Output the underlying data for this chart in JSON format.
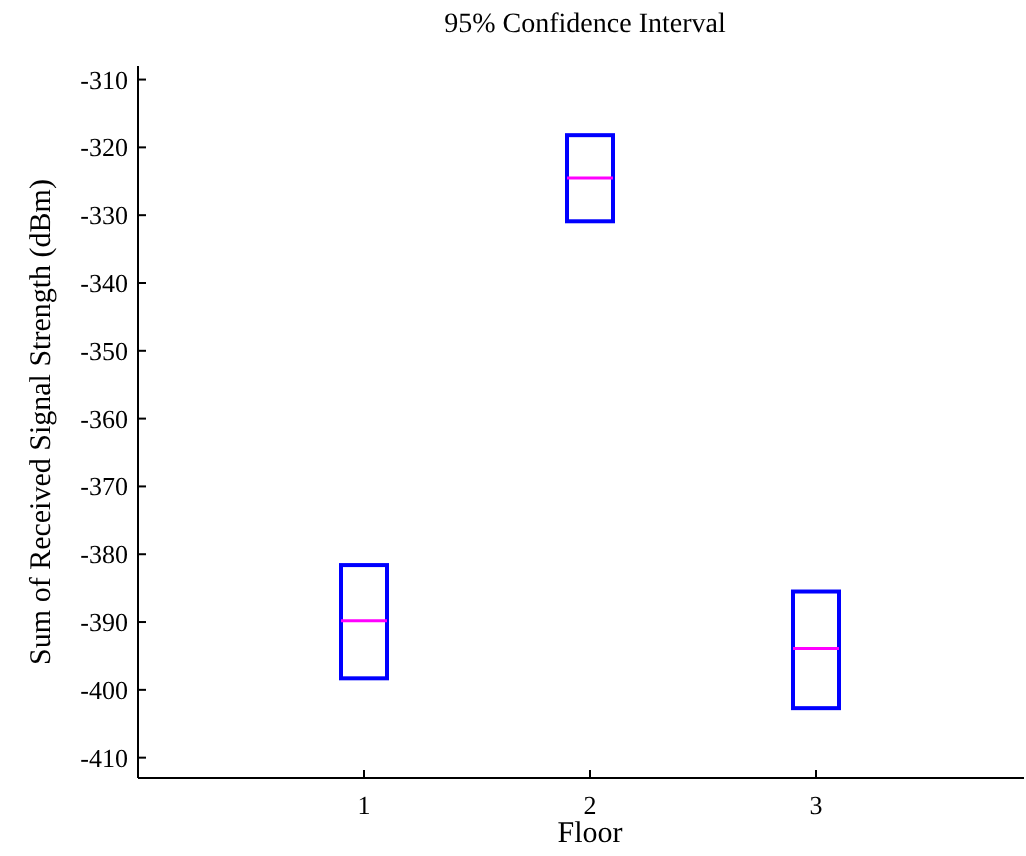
{
  "chart_data": {
    "type": "box",
    "title": "95% Confidence Interval",
    "xlabel": "Floor",
    "ylabel": "Sum of Received Signal Strength (dBm)",
    "categories": [
      "1",
      "2",
      "3"
    ],
    "boxes": [
      {
        "low": -398.3,
        "q1": -398.3,
        "median": -389.8,
        "q3": -381.6,
        "high": -381.6
      },
      {
        "low": -330.9,
        "q1": -330.9,
        "median": -324.5,
        "q3": -318.2,
        "high": -318.2
      },
      {
        "low": -402.7,
        "q1": -402.7,
        "median": -393.9,
        "q3": -385.5,
        "high": -385.5
      }
    ],
    "color": "#0000ff",
    "ylim": [
      -413,
      -308
    ],
    "yticks": [
      -410,
      -400,
      -390,
      -380,
      -370,
      -360,
      -350,
      -340,
      -330,
      -320,
      -310
    ],
    "grid": false
  }
}
